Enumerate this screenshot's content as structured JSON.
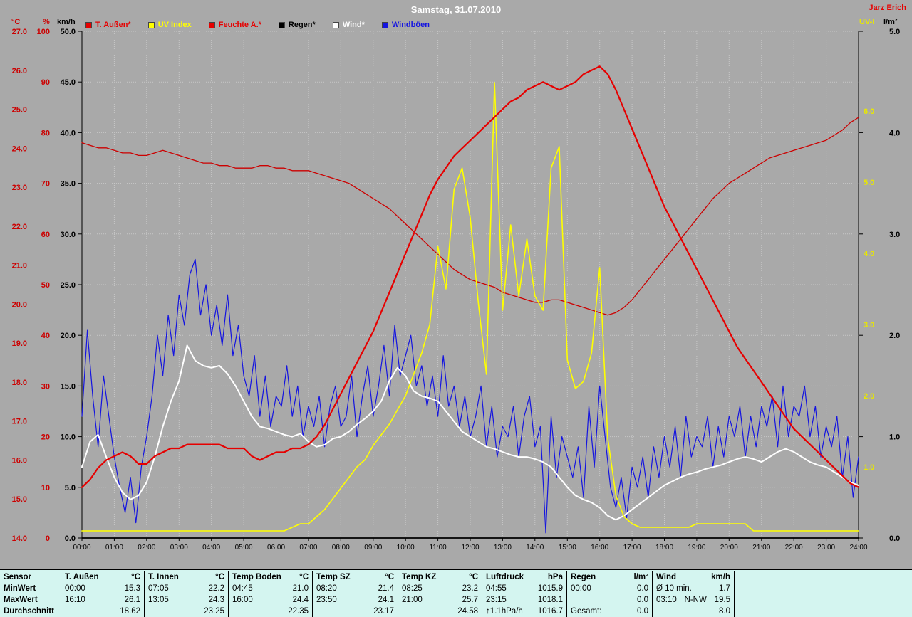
{
  "header": {
    "title": "Samstag, 31.07.2010",
    "author": "Jarz Erich"
  },
  "axes": {
    "left_units": [
      "°C",
      "%",
      "km/h"
    ],
    "right_units": [
      "UV-I",
      "l/m²"
    ],
    "c_ticks": [
      "27.0",
      "26.0",
      "25.0",
      "24.0",
      "23.0",
      "22.0",
      "21.0",
      "20.0",
      "19.0",
      "18.0",
      "17.0",
      "16.0",
      "15.0",
      "14.0"
    ],
    "pct_ticks": [
      "100",
      "90",
      "80",
      "70",
      "60",
      "50",
      "40",
      "30",
      "20",
      "10",
      "0"
    ],
    "kmh_ticks": [
      "50.0",
      "45.0",
      "40.0",
      "35.0",
      "30.0",
      "25.0",
      "20.0",
      "15.0",
      "10.0",
      "5.0",
      "0.0"
    ],
    "uv_ticks": [
      "6.0",
      "5.0",
      "4.0",
      "3.0",
      "2.0",
      "1.0"
    ],
    "lm2_ticks": [
      "5.0",
      "4.0",
      "3.0",
      "2.0",
      "1.0",
      "0.0"
    ],
    "x_ticks": [
      "00:00",
      "01:00",
      "02:00",
      "03:00",
      "04:00",
      "05:00",
      "06:00",
      "07:00",
      "08:00",
      "09:00",
      "10:00",
      "11:00",
      "12:00",
      "13:00",
      "14:00",
      "15:00",
      "16:00",
      "17:00",
      "18:00",
      "19:00",
      "20:00",
      "21:00",
      "22:00",
      "23:00",
      "24:00"
    ]
  },
  "legend": [
    {
      "label": "T. Außen*",
      "color": "#e60000"
    },
    {
      "label": "UV Index",
      "color": "#ffff00"
    },
    {
      "label": "Feuchte A.*",
      "color": "#e60000"
    },
    {
      "label": "Regen*",
      "color": "#000000"
    },
    {
      "label": "Wind*",
      "color": "#ffffff"
    },
    {
      "label": "Windböen",
      "color": "#1414e0"
    }
  ],
  "colors": {
    "background": "#a9a9a9",
    "grid": "#c8c8c8",
    "table_bg": "#d4f5f0",
    "title": "#ffffff"
  },
  "chart_data": {
    "type": "line",
    "title": "Samstag, 31.07.2010",
    "x_range_hours": [
      0,
      24
    ],
    "axis_ranges": {
      "c": [
        14,
        27
      ],
      "pct": [
        0,
        100
      ],
      "kmh": [
        0,
        50
      ],
      "uv": [
        0,
        7.12
      ],
      "lm2": [
        0,
        5
      ]
    },
    "series": [
      {
        "name": "T. Außen",
        "unit": "°C",
        "axis": "c",
        "color": "#e60000",
        "width": 2.2,
        "step_minutes": 15,
        "values": [
          15.3,
          15.5,
          15.8,
          16.0,
          16.1,
          16.2,
          16.1,
          15.9,
          15.9,
          16.1,
          16.2,
          16.3,
          16.3,
          16.4,
          16.4,
          16.4,
          16.4,
          16.4,
          16.3,
          16.3,
          16.3,
          16.1,
          16.0,
          16.1,
          16.2,
          16.2,
          16.3,
          16.3,
          16.4,
          16.6,
          16.9,
          17.3,
          17.7,
          18.1,
          18.5,
          18.9,
          19.3,
          19.8,
          20.3,
          20.8,
          21.3,
          21.8,
          22.3,
          22.8,
          23.2,
          23.5,
          23.8,
          24.0,
          24.2,
          24.4,
          24.6,
          24.8,
          25.0,
          25.2,
          25.3,
          25.5,
          25.6,
          25.7,
          25.6,
          25.5,
          25.6,
          25.7,
          25.9,
          26.0,
          26.1,
          25.9,
          25.5,
          25.0,
          24.5,
          24.0,
          23.5,
          23.0,
          22.5,
          22.1,
          21.7,
          21.3,
          20.9,
          20.5,
          20.1,
          19.7,
          19.3,
          18.9,
          18.6,
          18.3,
          18.0,
          17.7,
          17.4,
          17.1,
          16.8,
          16.6,
          16.4,
          16.2,
          16.0,
          15.8,
          15.6,
          15.4,
          15.3
        ]
      },
      {
        "name": "Feuchte A.",
        "unit": "%",
        "axis": "pct",
        "color": "#cc0000",
        "width": 1.3,
        "step_minutes": 15,
        "values": [
          78,
          77.5,
          77,
          77,
          76.5,
          76,
          76,
          75.5,
          75.5,
          76,
          76.5,
          76,
          75.5,
          75,
          74.5,
          74,
          74,
          73.5,
          73.5,
          73,
          73,
          73,
          73.5,
          73.5,
          73,
          73,
          72.5,
          72.5,
          72.5,
          72,
          71.5,
          71,
          70.5,
          70,
          69,
          68,
          67,
          66,
          65,
          63.5,
          62,
          60.5,
          59,
          57.5,
          56,
          54.5,
          53,
          52,
          51,
          50.5,
          50,
          49.5,
          48.5,
          48,
          47.5,
          47,
          46.5,
          46.5,
          47,
          47,
          46.5,
          46,
          45.5,
          45,
          44.5,
          44,
          44.5,
          45.5,
          47,
          49,
          51,
          53,
          55,
          57,
          59,
          61,
          63,
          65,
          67,
          68.5,
          70,
          71,
          72,
          73,
          74,
          75,
          75.5,
          76,
          76.5,
          77,
          77.5,
          78,
          78.5,
          79.5,
          80.5,
          82,
          83
        ]
      },
      {
        "name": "UV Index",
        "unit": "UV-I",
        "axis": "uv",
        "color": "#ffff00",
        "width": 1.6,
        "step_minutes": 15,
        "values": [
          0.1,
          0.1,
          0.1,
          0.1,
          0.1,
          0.1,
          0.1,
          0.1,
          0.1,
          0.1,
          0.1,
          0.1,
          0.1,
          0.1,
          0.1,
          0.1,
          0.1,
          0.1,
          0.1,
          0.1,
          0.1,
          0.1,
          0.1,
          0.1,
          0.1,
          0.1,
          0.15,
          0.2,
          0.2,
          0.3,
          0.4,
          0.55,
          0.7,
          0.85,
          1.0,
          1.1,
          1.3,
          1.45,
          1.6,
          1.8,
          2.0,
          2.3,
          2.6,
          3.0,
          4.1,
          3.5,
          4.9,
          5.2,
          4.5,
          3.3,
          2.3,
          6.4,
          3.2,
          4.4,
          3.4,
          4.2,
          3.4,
          3.2,
          5.2,
          5.5,
          2.5,
          2.1,
          2.2,
          2.6,
          3.8,
          1.4,
          0.6,
          0.3,
          0.2,
          0.15,
          0.15,
          0.15,
          0.15,
          0.15,
          0.15,
          0.15,
          0.2,
          0.2,
          0.2,
          0.2,
          0.2,
          0.2,
          0.2,
          0.1,
          0.1,
          0.1,
          0.1,
          0.1,
          0.1,
          0.1,
          0.1,
          0.1,
          0.1,
          0.1,
          0.1,
          0.1,
          0.1
        ]
      },
      {
        "name": "Wind",
        "unit": "km/h",
        "axis": "kmh",
        "color": "#ffffff",
        "width": 2,
        "step_minutes": 15,
        "values": [
          7.0,
          9.5,
          10.2,
          8.0,
          6.0,
          4.5,
          3.8,
          4.2,
          5.5,
          8.0,
          11.0,
          13.5,
          15.5,
          19.0,
          17.5,
          17.0,
          16.8,
          17.0,
          16.2,
          15.0,
          13.5,
          12.0,
          11.0,
          10.8,
          10.5,
          10.2,
          10.0,
          10.3,
          9.5,
          9.0,
          9.2,
          9.8,
          10.0,
          10.5,
          11.2,
          11.8,
          12.5,
          13.5,
          15.5,
          16.8,
          16.0,
          14.5,
          14.0,
          13.8,
          13.5,
          12.5,
          11.5,
          10.5,
          10.0,
          9.5,
          9.0,
          8.8,
          8.5,
          8.2,
          8.0,
          8.0,
          7.8,
          7.5,
          7.0,
          6.0,
          5.0,
          4.2,
          3.8,
          3.5,
          3.0,
          2.2,
          1.8,
          2.2,
          2.8,
          3.4,
          4.0,
          4.6,
          5.2,
          5.6,
          6.0,
          6.3,
          6.5,
          6.8,
          7.0,
          7.2,
          7.5,
          7.8,
          8.0,
          7.8,
          7.5,
          8.0,
          8.5,
          8.8,
          8.5,
          8.0,
          7.5,
          7.2,
          7.0,
          6.5,
          6.0,
          5.5,
          5.2
        ]
      },
      {
        "name": "Windböen",
        "unit": "km/h",
        "axis": "kmh",
        "color": "#1414e0",
        "width": 1.2,
        "step_minutes": 10,
        "values": [
          12,
          20.5,
          14,
          9,
          16,
          12,
          8,
          5,
          2.5,
          6,
          1.5,
          7,
          10,
          14,
          20,
          16,
          22,
          18,
          24,
          21,
          26,
          27.5,
          22,
          25,
          20,
          23,
          19,
          24,
          18,
          21,
          16,
          14,
          18,
          12,
          16,
          11,
          14,
          13,
          17,
          12,
          15,
          10,
          13,
          11,
          14,
          9,
          13,
          15,
          11,
          12,
          16,
          10,
          14,
          17,
          12,
          15,
          19,
          14,
          21,
          16,
          18,
          20,
          15,
          17,
          13,
          16,
          12,
          18,
          13,
          15,
          11,
          14,
          10,
          12,
          15,
          9,
          13,
          8,
          11,
          10,
          13,
          8,
          12,
          14,
          9,
          11,
          0.5,
          12,
          6,
          10,
          8,
          6,
          9,
          4,
          13,
          7,
          15,
          10,
          5,
          3,
          6,
          2,
          7,
          5,
          8,
          4,
          9,
          6,
          10,
          7,
          11,
          6,
          12,
          8,
          10,
          9,
          12,
          7,
          11,
          8,
          12,
          10,
          13,
          8,
          12,
          9,
          13,
          11,
          14,
          9,
          15,
          10,
          13,
          12,
          15,
          10,
          13,
          8,
          11,
          9,
          12,
          6,
          10,
          4,
          8
        ]
      },
      {
        "name": "Regen",
        "unit": "l/m²",
        "axis": "lm2",
        "color": "#000000",
        "width": 1.5,
        "step_minutes": 1440,
        "values": [
          0,
          0
        ]
      }
    ]
  },
  "table": {
    "header": {
      "label": "Sensor",
      "groups": [
        {
          "name": "T. Außen",
          "unit": "°C"
        },
        {
          "name": "T. Innen",
          "unit": "°C"
        },
        {
          "name": "Temp Boden",
          "unit": "°C"
        },
        {
          "name": "Temp SZ",
          "unit": "°C"
        },
        {
          "name": "Temp KZ",
          "unit": "°C"
        },
        {
          "name": "Luftdruck",
          "unit": "hPa"
        },
        {
          "name": "Regen",
          "unit": "l/m²"
        },
        {
          "name": "Wind",
          "unit": "km/h"
        }
      ]
    },
    "rows": [
      {
        "label": "MinWert",
        "cells": [
          [
            "00:00",
            "15.3"
          ],
          [
            "07:05",
            "22.2"
          ],
          [
            "04:45",
            "21.0"
          ],
          [
            "08:20",
            "21.4"
          ],
          [
            "08:25",
            "23.2"
          ],
          [
            "04:55",
            "1015.9"
          ],
          [
            "00:00",
            "0.0"
          ],
          [
            "Ø 10 min.",
            "1.7"
          ]
        ]
      },
      {
        "label": "MaxWert",
        "cells": [
          [
            "16:10",
            "26.1"
          ],
          [
            "13:05",
            "24.3"
          ],
          [
            "16:00",
            "24.4"
          ],
          [
            "23:50",
            "24.1"
          ],
          [
            "21:00",
            "25.7"
          ],
          [
            "23:15",
            "1018.1"
          ],
          [
            "",
            "0.0"
          ],
          [
            "03:10",
            "N-NW",
            "19.5"
          ]
        ]
      },
      {
        "label": "Durchschnitt",
        "cells": [
          [
            "",
            "18.62"
          ],
          [
            "",
            "23.25"
          ],
          [
            "",
            "22.35"
          ],
          [
            "",
            "23.17"
          ],
          [
            "",
            "24.58"
          ],
          [
            "↑1.1hPa/h",
            "1016.7"
          ],
          [
            "Gesamt:",
            "0.0"
          ],
          [
            "",
            "8.0"
          ]
        ]
      }
    ]
  }
}
